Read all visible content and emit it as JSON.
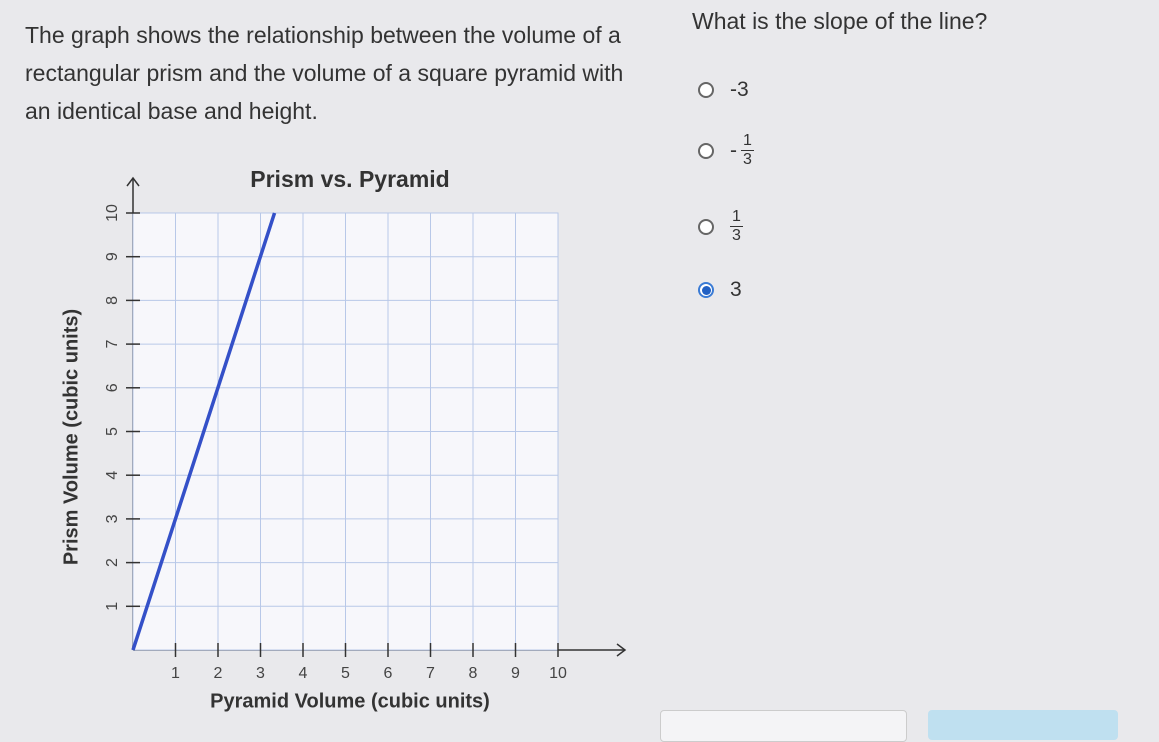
{
  "passage": "The graph shows the relationship between the volume of a rectangular prism and the volume of a square pyramid with an identical base and height.",
  "question": "What is the slope of the line?",
  "options": [
    {
      "label": "-3"
    },
    {
      "sign": "-",
      "numerator": "1",
      "denominator": "3"
    },
    {
      "numerator": "1",
      "denominator": "3"
    },
    {
      "label": "3"
    }
  ],
  "selected": 3,
  "chart_data": {
    "type": "line",
    "title": "Prism vs. Pyramid",
    "xlabel": "Pyramid Volume (cubic units)",
    "ylabel": "Prism Volume (cubic units)",
    "x": [
      0,
      3.33
    ],
    "series": [
      {
        "color": "#3450c8",
        "values": [
          0,
          10
        ]
      }
    ],
    "xlim": [
      0,
      10
    ],
    "ylim": [
      0,
      10
    ],
    "xticks": [
      1,
      2,
      3,
      4,
      5,
      6,
      7,
      8,
      9,
      10
    ],
    "yticks": [
      1,
      2,
      3,
      4,
      5,
      6,
      7,
      8,
      9,
      10
    ],
    "grid": true
  }
}
